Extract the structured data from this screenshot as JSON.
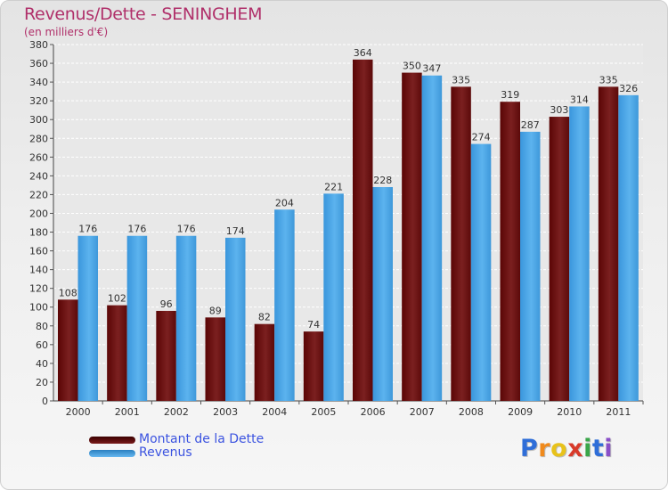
{
  "header": {
    "title": "Revenus/Dette - SENINGHEM",
    "subtitle": "(en milliers d'€)"
  },
  "colors": {
    "dette": "#6e1313",
    "revenus": "#4aa6e6",
    "title": "#b0306a",
    "legend_text": "#3b53e0"
  },
  "chart_data": {
    "type": "bar",
    "categories": [
      "2000",
      "2001",
      "2002",
      "2003",
      "2004",
      "2005",
      "2006",
      "2007",
      "2008",
      "2009",
      "2010",
      "2011"
    ],
    "series": [
      {
        "name": "Montant de la Dette",
        "values": [
          108,
          102,
          96,
          89,
          82,
          74,
          364,
          350,
          335,
          319,
          303,
          335
        ]
      },
      {
        "name": "Revenus",
        "values": [
          176,
          176,
          176,
          174,
          204,
          221,
          228,
          347,
          274,
          287,
          314,
          326
        ]
      }
    ],
    "title": "Revenus/Dette - SENINGHEM",
    "ylabel": "(en milliers d'€)",
    "ylim": [
      0,
      380
    ],
    "yticks": [
      0,
      20,
      40,
      60,
      80,
      100,
      120,
      140,
      160,
      180,
      200,
      220,
      240,
      260,
      280,
      300,
      320,
      340,
      360,
      380
    ],
    "grid": true,
    "legend_position": "bottom-left"
  },
  "legend": [
    {
      "label": "Montant de la Dette"
    },
    {
      "label": "Revenus"
    }
  ],
  "logo": {
    "text": "Proxiti"
  }
}
